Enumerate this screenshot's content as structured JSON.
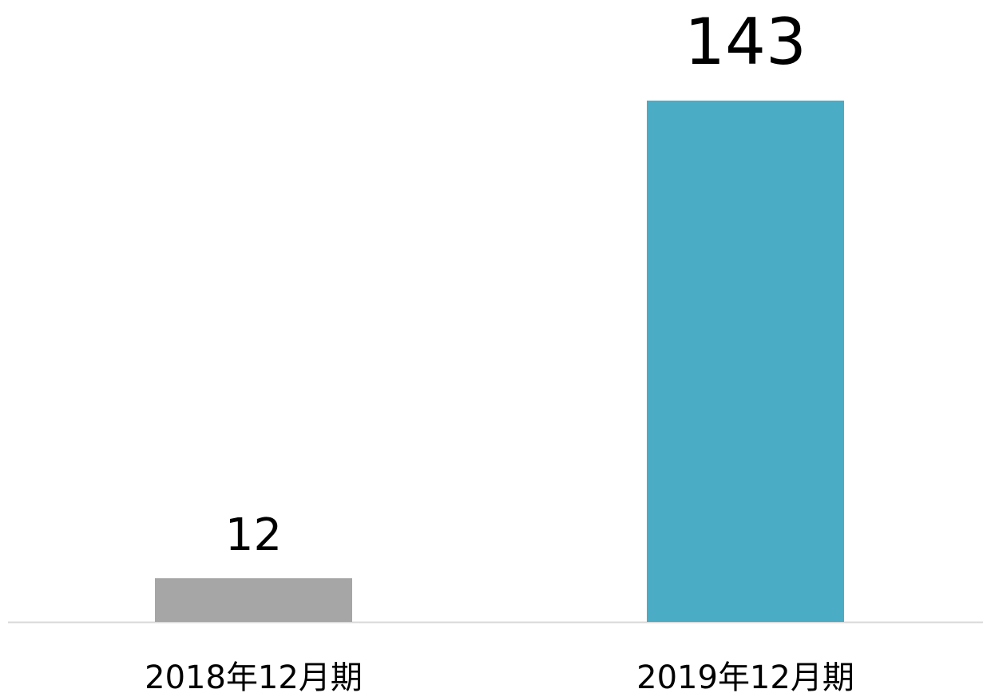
{
  "chart_data": {
    "type": "bar",
    "categories": [
      "2018年12月期",
      "2019年12月期"
    ],
    "values": [
      12,
      143
    ],
    "colors": [
      "#a6a6a6",
      "#4bacc6"
    ]
  }
}
